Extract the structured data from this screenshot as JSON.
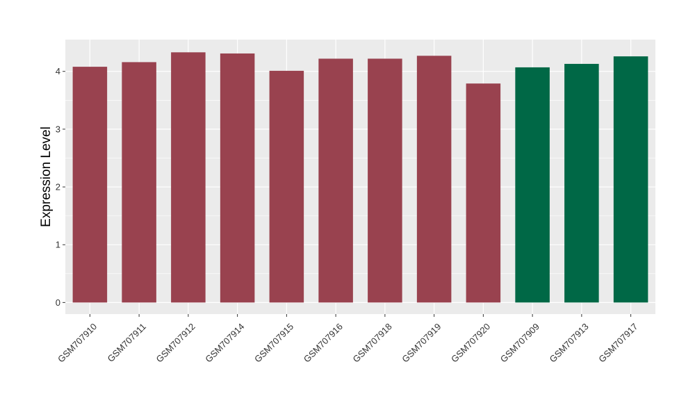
{
  "chart_data": {
    "type": "bar",
    "title": "",
    "xlabel": "",
    "ylabel": "Expression Level",
    "ylim": [
      -0.2,
      4.55
    ],
    "yticks": [
      0,
      1,
      2,
      3,
      4
    ],
    "grid": true,
    "legend": "none",
    "categories": [
      "GSM707910",
      "GSM707911",
      "GSM707912",
      "GSM707914",
      "GSM707915",
      "GSM707916",
      "GSM707918",
      "GSM707919",
      "GSM707920",
      "GSM707909",
      "GSM707913",
      "GSM707917"
    ],
    "values": [
      4.08,
      4.16,
      4.33,
      4.31,
      4.01,
      4.22,
      4.22,
      4.27,
      3.79,
      4.07,
      4.13,
      4.26
    ],
    "bar_colors": [
      "#99424f",
      "#99424f",
      "#99424f",
      "#99424f",
      "#99424f",
      "#99424f",
      "#99424f",
      "#99424f",
      "#99424f",
      "#006846",
      "#006846",
      "#006846"
    ],
    "panel_background": "#ebebeb",
    "grid_color": "#ffffff"
  }
}
